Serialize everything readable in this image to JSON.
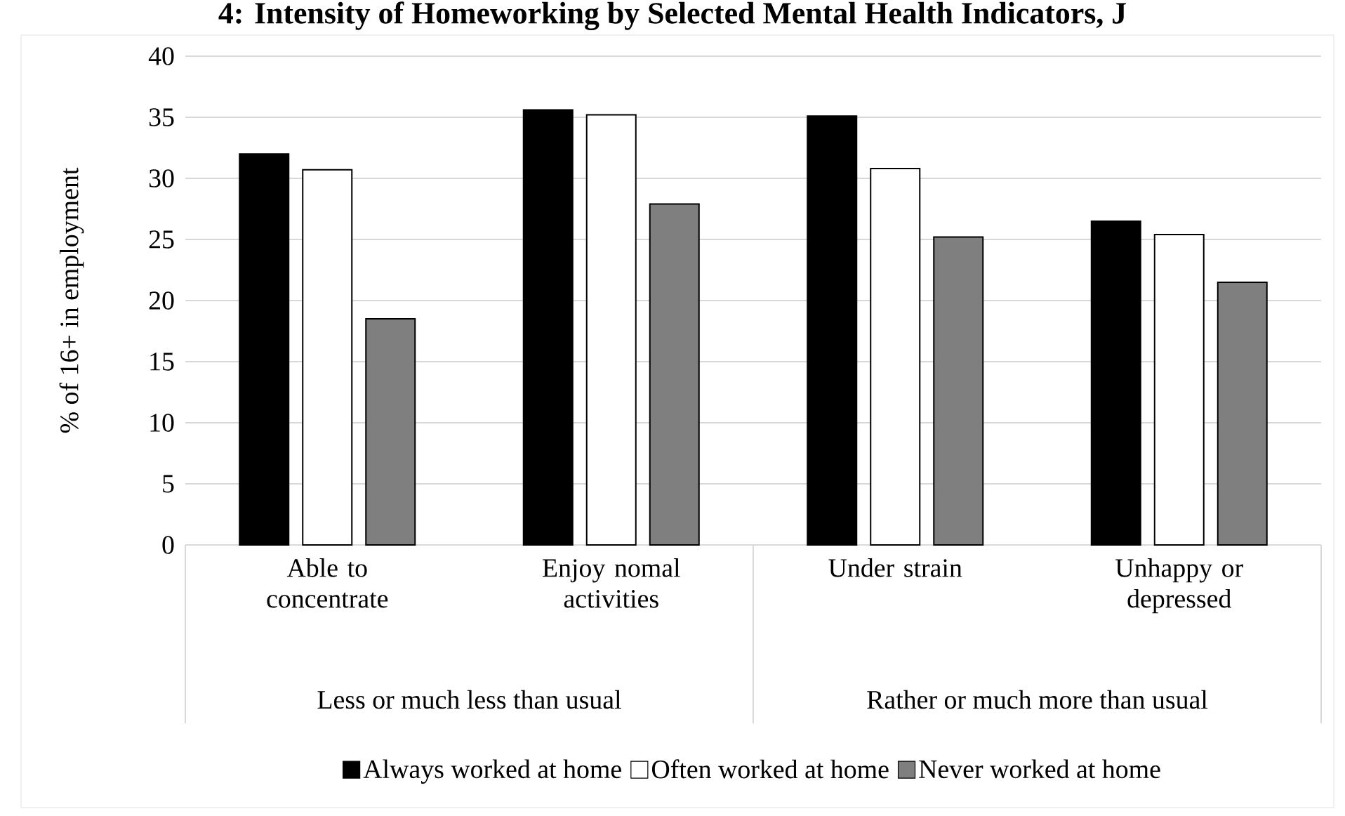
{
  "chart_data": {
    "type": "bar",
    "title": "4: Intensity of Homeworking by Selected Mental Health Indicators, J",
    "ylabel": "% of 16+ in employment",
    "categories": [
      "Able to concentrate",
      "Enjoy nomal activities",
      "Under strain",
      "Unhappy or depressed"
    ],
    "series": [
      {
        "name": "Always worked at home",
        "color": "#000000",
        "values": [
          32.0,
          35.6,
          35.1,
          26.5
        ]
      },
      {
        "name": "Often worked at home",
        "color": "#ffffff",
        "values": [
          30.7,
          35.2,
          30.8,
          25.4
        ]
      },
      {
        "name": "Never worked at home",
        "color": "#7f7f7f",
        "values": [
          18.5,
          27.9,
          25.2,
          21.5
        ]
      }
    ],
    "annotations": [
      "Less or much less than usual",
      "Rather or much more than usual"
    ],
    "ylim": [
      0,
      40
    ],
    "yticks": [
      0,
      5,
      10,
      15,
      20,
      25,
      30,
      35,
      40
    ],
    "grid": "y",
    "legend": "bottom"
  }
}
